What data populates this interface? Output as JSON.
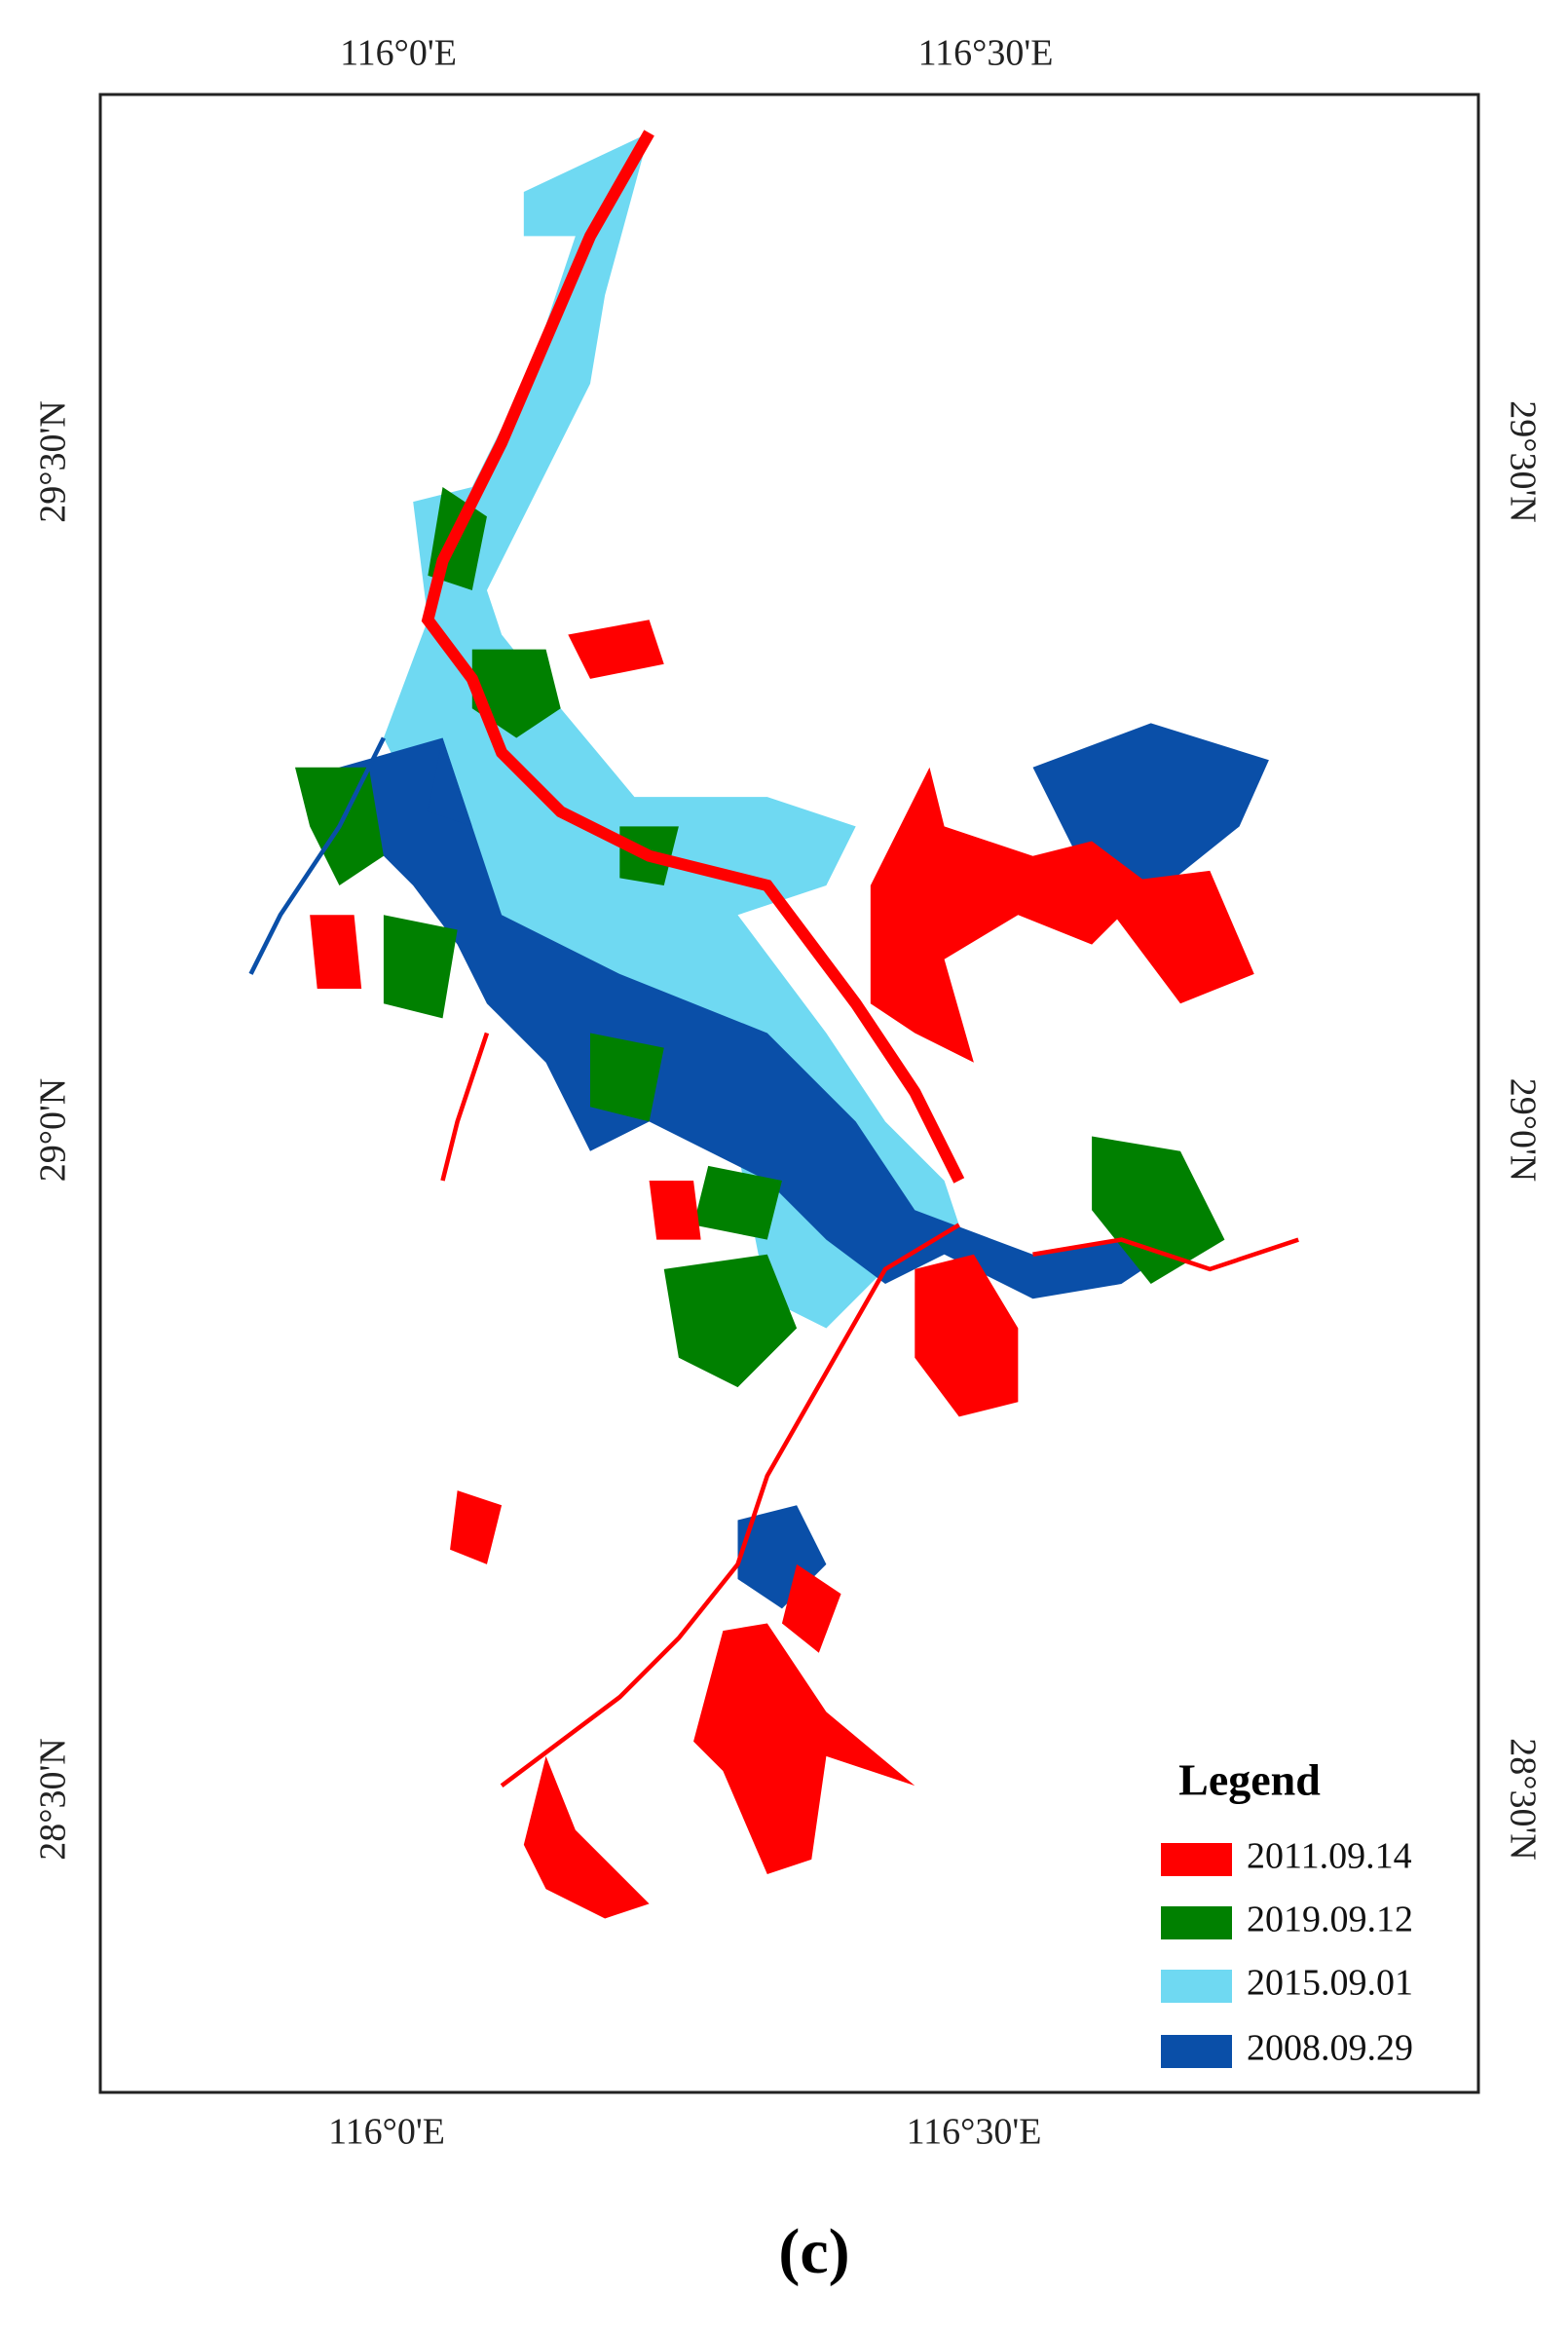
{
  "map": {
    "top_labels": [
      "116°0'E",
      "116°30'E"
    ],
    "bottom_labels": [
      "116°0'E",
      "116°30'E"
    ],
    "left_labels": [
      "29°30'N",
      "29°0'N",
      "28°30'N"
    ],
    "right_labels": [
      "29°30'N",
      "29°0'N",
      "28°30'N"
    ],
    "legend": {
      "title": "Legend",
      "items": [
        {
          "label": "2011.09.14",
          "color": "#ff0000"
        },
        {
          "label": "2019.09.12",
          "color": "#008000"
        },
        {
          "label": "2015.09.01",
          "color": "#6fd9f2"
        },
        {
          "label": "2008.09.29",
          "color": "#0a4fa8"
        }
      ]
    }
  },
  "caption": "(c)"
}
